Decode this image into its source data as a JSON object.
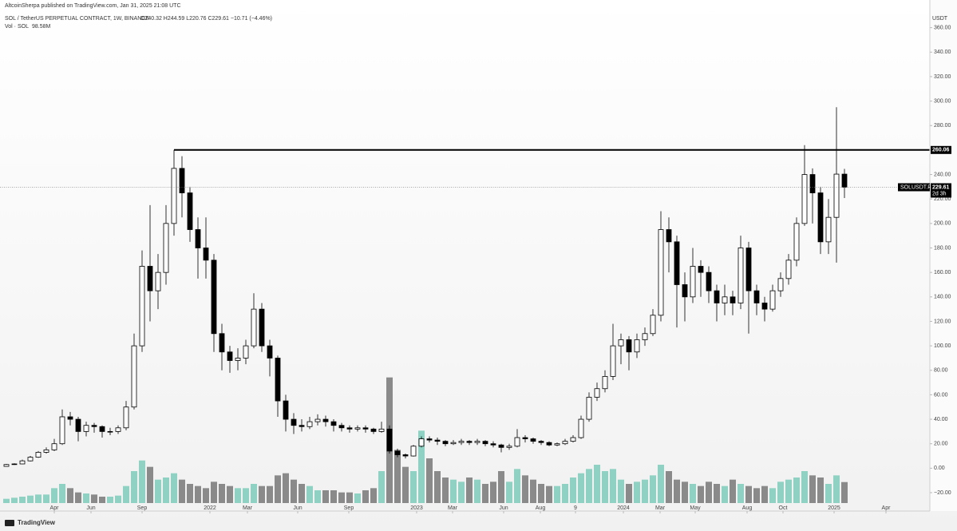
{
  "header": "AltcoinSherpa published on TradingView.com, Jan 31, 2025 21:08 UTC",
  "footer": "TradingView",
  "chart_data": {
    "type": "candlestick",
    "title": "SOL / TetherUS PERPETUAL CONTRACT, 1W, BINANCE",
    "legend_values": "O240.32 H244.59 L220.76 C229.61 −10.71 (−4.46%)",
    "volume_label": "Vol · SOL",
    "volume_value": "98.58M",
    "axis_unit": "USDT",
    "symbol": "SOLUSDT.P",
    "countdown": "2d 3h",
    "level": {
      "value": 260.06,
      "label": "260.06"
    },
    "up_color": "#ffffff",
    "down_color": "#000000",
    "vol_up_color": "#8fd1c2",
    "vol_down_color": "#8a8a8a",
    "open": [
      1.5,
      3,
      3.5,
      6,
      9,
      13,
      15,
      20,
      42,
      40,
      30,
      35,
      34,
      30,
      30,
      33,
      50,
      100,
      165,
      145,
      160,
      200,
      245,
      225,
      195,
      180,
      170,
      110,
      95,
      88,
      90,
      100,
      130,
      100,
      90,
      55,
      40,
      35,
      34,
      38,
      40,
      38,
      35,
      33,
      32,
      33,
      32,
      30,
      32,
      14,
      11,
      10,
      18,
      24,
      23,
      22,
      20,
      21,
      22,
      21,
      22,
      20,
      19,
      17,
      18,
      25,
      24,
      22,
      21,
      19,
      20,
      22,
      25,
      40,
      58,
      65,
      75,
      100,
      105,
      95,
      105,
      110,
      125,
      195,
      185,
      150,
      140,
      165,
      160,
      145,
      135,
      140,
      135,
      180,
      145,
      135,
      130,
      145,
      155,
      170,
      200,
      240,
      225,
      185,
      205,
      240.32
    ],
    "high": [
      3.5,
      4,
      7,
      10,
      14,
      17,
      24,
      48,
      46,
      42,
      38,
      37,
      35,
      33,
      35,
      55,
      110,
      178,
      215,
      175,
      215,
      260.06,
      255,
      230,
      205,
      205,
      175,
      118,
      100,
      98,
      105,
      143,
      135,
      105,
      92,
      60,
      45,
      40,
      42,
      44,
      43,
      40,
      37,
      35,
      35,
      35,
      33,
      38,
      35,
      16,
      12,
      19,
      26,
      26,
      25,
      23,
      23,
      24,
      23,
      24,
      23,
      22,
      20,
      20,
      32,
      27,
      25,
      23,
      22,
      21,
      24,
      27,
      43,
      62,
      70,
      80,
      118,
      110,
      108,
      110,
      115,
      130,
      210,
      205,
      190,
      160,
      180,
      170,
      165,
      150,
      150,
      145,
      190,
      185,
      150,
      140,
      150,
      160,
      175,
      205,
      264,
      245,
      230,
      220,
      295,
      244.59
    ],
    "low": [
      1.3,
      2.8,
      3.2,
      5.5,
      8.5,
      12,
      14,
      19,
      35,
      22,
      26,
      29,
      25,
      27,
      28,
      31,
      48,
      95,
      120,
      130,
      150,
      190,
      205,
      185,
      155,
      155,
      95,
      80,
      78,
      80,
      85,
      98,
      95,
      75,
      42,
      30,
      28,
      30,
      32,
      35,
      34,
      30,
      30,
      29,
      30,
      29,
      28,
      29,
      12,
      9,
      8,
      9.5,
      17,
      21,
      19,
      18,
      19,
      19,
      19,
      19,
      18,
      17,
      13,
      15,
      17,
      21,
      20,
      19,
      18,
      18,
      19,
      21,
      24,
      38,
      55,
      62,
      72,
      85,
      80,
      90,
      100,
      108,
      120,
      160,
      115,
      120,
      135,
      140,
      135,
      120,
      125,
      125,
      130,
      110,
      125,
      120,
      128,
      140,
      150,
      165,
      198,
      200,
      175,
      175,
      168,
      220.76
    ],
    "close": [
      3,
      3.5,
      6,
      9,
      13,
      15,
      20,
      42,
      40,
      30,
      35,
      34,
      30,
      30,
      33,
      50,
      100,
      165,
      145,
      160,
      200,
      245,
      225,
      195,
      180,
      170,
      110,
      95,
      88,
      90,
      100,
      130,
      100,
      90,
      55,
      40,
      35,
      34,
      38,
      40,
      38,
      35,
      33,
      32,
      33,
      32,
      30,
      32,
      14,
      11,
      10,
      18,
      24,
      23,
      22,
      20,
      21,
      22,
      21,
      22,
      20,
      19,
      17,
      18,
      25,
      24,
      22,
      21,
      19,
      20,
      22,
      25,
      40,
      58,
      65,
      75,
      100,
      105,
      95,
      105,
      110,
      125,
      195,
      185,
      150,
      140,
      165,
      160,
      145,
      135,
      140,
      135,
      180,
      145,
      135,
      130,
      145,
      155,
      170,
      200,
      240,
      225,
      185,
      205,
      240.32,
      229.61
    ],
    "volume": [
      20,
      25,
      30,
      35,
      40,
      40,
      70,
      90,
      70,
      50,
      45,
      40,
      30,
      30,
      35,
      80,
      150,
      200,
      170,
      110,
      120,
      140,
      110,
      90,
      80,
      70,
      100,
      90,
      80,
      70,
      70,
      90,
      80,
      80,
      130,
      140,
      110,
      90,
      80,
      60,
      60,
      60,
      50,
      50,
      45,
      60,
      70,
      150,
      590,
      250,
      170,
      150,
      340,
      210,
      150,
      120,
      110,
      100,
      120,
      110,
      90,
      100,
      150,
      100,
      160,
      130,
      110,
      90,
      80,
      80,
      90,
      120,
      140,
      160,
      180,
      150,
      160,
      110,
      90,
      100,
      110,
      130,
      180,
      150,
      110,
      100,
      90,
      80,
      100,
      90,
      80,
      110,
      90,
      80,
      70,
      80,
      70,
      100,
      110,
      120,
      150,
      130,
      120,
      90,
      130,
      98.58
    ],
    "vlim": [
      0,
      600
    ],
    "xlim": [
      -0.3,
      115.7
    ],
    "xticks": [
      {
        "value": 6,
        "label": "Apr"
      },
      {
        "value": 10.6,
        "label": "Jun"
      },
      {
        "value": 17,
        "label": "Sep"
      },
      {
        "value": 25.5,
        "label": "2022"
      },
      {
        "value": 30.2,
        "label": "Mar"
      },
      {
        "value": 36.5,
        "label": "Jun"
      },
      {
        "value": 42.9,
        "label": "Sep"
      },
      {
        "value": 51.4,
        "label": "2023"
      },
      {
        "value": 55.9,
        "label": "Mar"
      },
      {
        "value": 62.3,
        "label": "Jun"
      },
      {
        "value": 66.9,
        "label": "Aug"
      },
      {
        "value": 71.3,
        "label": "9"
      },
      {
        "value": 77.3,
        "label": "2024"
      },
      {
        "value": 81.9,
        "label": "Mar"
      },
      {
        "value": 86.3,
        "label": "May"
      },
      {
        "value": 92.8,
        "label": "Aug"
      },
      {
        "value": 97.3,
        "label": "Oct"
      },
      {
        "value": 103.7,
        "label": "2025"
      },
      {
        "value": 110.2,
        "label": "Apr"
      }
    ],
    "ylim": [
      -35,
      380
    ],
    "yticks": [
      {
        "value": -20,
        "label": "−20.00"
      },
      {
        "value": 0,
        "label": "0.00"
      },
      {
        "value": 20,
        "label": "20.00"
      },
      {
        "value": 40,
        "label": "40.00"
      },
      {
        "value": 60,
        "label": "60.00"
      },
      {
        "value": 80,
        "label": "80.00"
      },
      {
        "value": 100,
        "label": "100.00"
      },
      {
        "value": 120,
        "label": "120.00"
      },
      {
        "value": 140,
        "label": "140.00"
      },
      {
        "value": 160,
        "label": "160.00"
      },
      {
        "value": 180,
        "label": "180.00"
      },
      {
        "value": 200,
        "label": "200.00"
      },
      {
        "value": 220,
        "label": "220.00"
      },
      {
        "value": 240,
        "label": "240.00"
      },
      {
        "value": 260,
        "label": "260.00"
      },
      {
        "value": 280,
        "label": "280.00"
      },
      {
        "value": 300,
        "label": "300.00"
      },
      {
        "value": 320,
        "label": "320.00"
      },
      {
        "value": 340,
        "label": "340.00"
      },
      {
        "value": 360,
        "label": "360.00"
      }
    ]
  }
}
